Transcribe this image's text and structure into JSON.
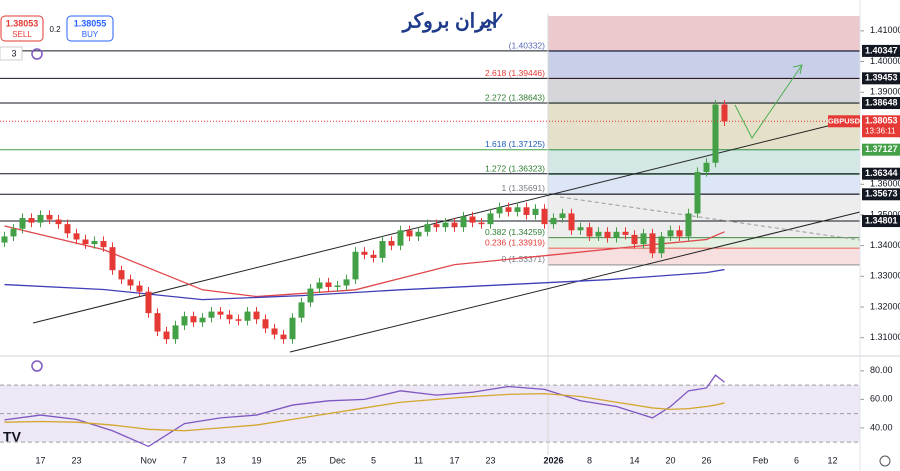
{
  "header": {
    "sell_price": "1.38053",
    "sell_label": "SELL",
    "spread": "0.2",
    "buy_price": "1.38055",
    "buy_label": "BUY",
    "interval": "3",
    "logo": "ایران بروکر"
  },
  "chart_data": [
    {
      "type": "candlestick",
      "symbol": "GBPUSD",
      "up_color": "#43a047",
      "down_color": "#e53935",
      "categories": [
        null,
        null,
        null,
        null,
        "17",
        null,
        null,
        null,
        "23",
        null,
        null,
        null,
        null,
        null,
        null,
        null,
        "Nov",
        null,
        null,
        null,
        "7",
        null,
        null,
        null,
        "13",
        null,
        null,
        null,
        "19",
        null,
        null,
        null,
        null,
        "25",
        null,
        null,
        null,
        "Dec",
        null,
        null,
        null,
        "5",
        null,
        null,
        null,
        null,
        "11",
        null,
        null,
        null,
        "17",
        null,
        null,
        null,
        "23",
        null,
        null,
        null,
        null,
        null,
        null,
        "2026",
        null,
        null,
        null,
        "8",
        null,
        null,
        null,
        null,
        "14",
        null,
        null,
        null,
        "20",
        null,
        null,
        null,
        "26",
        null,
        null,
        null,
        null,
        null,
        "Feb",
        null,
        null,
        null,
        "6",
        null,
        null,
        null,
        "12",
        null
      ],
      "open": [
        1.341,
        1.343,
        1.3455,
        1.349,
        1.3475,
        1.35,
        1.3485,
        1.347,
        1.344,
        1.342,
        1.3405,
        1.3415,
        1.3395,
        1.332,
        1.329,
        1.327,
        1.325,
        1.318,
        1.312,
        1.3095,
        1.314,
        1.317,
        1.315,
        1.3165,
        1.3185,
        1.3175,
        1.316,
        1.3155,
        1.3185,
        1.316,
        1.313,
        1.311,
        1.3095,
        1.3165,
        1.3215,
        1.326,
        1.328,
        1.3265,
        1.327,
        1.329,
        1.338,
        1.337,
        1.336,
        1.3415,
        1.34,
        1.345,
        1.343,
        1.3445,
        1.347,
        1.346,
        1.3475,
        1.346,
        1.3495,
        1.3475,
        1.347,
        1.3505,
        1.3525,
        1.351,
        1.3525,
        1.35,
        1.352,
        1.347,
        1.349,
        1.3505,
        1.345,
        1.346,
        1.343,
        1.3445,
        1.3425,
        1.3445,
        1.3435,
        1.3405,
        1.344,
        1.3375,
        1.343,
        1.345,
        1.343,
        1.3505,
        1.364,
        1.367,
        1.386,
        null,
        null,
        null,
        null,
        null,
        null,
        null,
        null,
        null,
        null,
        null,
        null,
        null
      ],
      "high": [
        1.3445,
        1.347,
        1.3505,
        1.3505,
        1.3515,
        1.3515,
        1.35,
        1.3485,
        1.3455,
        1.3435,
        1.343,
        1.343,
        1.341,
        1.3335,
        1.3305,
        1.3285,
        1.3265,
        1.3195,
        1.3135,
        1.3155,
        1.3185,
        1.3185,
        1.318,
        1.32,
        1.32,
        1.319,
        1.3175,
        1.32,
        1.32,
        1.3175,
        1.3145,
        1.3125,
        1.318,
        1.323,
        1.3275,
        1.3295,
        1.3295,
        1.3285,
        1.3305,
        1.3395,
        1.3395,
        1.3385,
        1.343,
        1.343,
        1.3465,
        1.3465,
        1.346,
        1.3485,
        1.3485,
        1.349,
        1.349,
        1.351,
        1.351,
        1.349,
        1.352,
        1.354,
        1.354,
        1.354,
        1.354,
        1.3535,
        1.3535,
        1.3505,
        1.352,
        1.352,
        1.3475,
        1.3475,
        1.346,
        1.346,
        1.346,
        1.346,
        1.345,
        1.3455,
        1.3455,
        1.3445,
        1.3465,
        1.3465,
        1.352,
        1.3655,
        1.3685,
        1.3875,
        1.3875,
        null,
        null,
        null,
        null,
        null,
        null,
        null,
        null,
        null,
        null,
        null,
        null,
        null
      ],
      "low": [
        1.3395,
        1.3415,
        1.344,
        1.346,
        1.346,
        1.347,
        1.3455,
        1.3425,
        1.3405,
        1.339,
        1.339,
        1.338,
        1.3305,
        1.3275,
        1.3255,
        1.3235,
        1.3165,
        1.3105,
        1.308,
        1.308,
        1.3125,
        1.3135,
        1.3135,
        1.315,
        1.316,
        1.3145,
        1.314,
        1.314,
        1.3145,
        1.3115,
        1.3095,
        1.308,
        1.308,
        1.315,
        1.32,
        1.3245,
        1.325,
        1.325,
        1.3255,
        1.3275,
        1.3355,
        1.3345,
        1.3345,
        1.3385,
        1.3385,
        1.3415,
        1.3415,
        1.343,
        1.3445,
        1.3445,
        1.3445,
        1.3445,
        1.346,
        1.3455,
        1.3455,
        1.349,
        1.3495,
        1.3495,
        1.3485,
        1.3485,
        1.3455,
        1.3455,
        1.3475,
        1.3435,
        1.3435,
        1.3415,
        1.3415,
        1.341,
        1.341,
        1.342,
        1.339,
        1.339,
        1.336,
        1.336,
        1.3415,
        1.3415,
        1.3415,
        1.349,
        1.3625,
        1.3655,
        1.379,
        null,
        null,
        null,
        null,
        null,
        null,
        null,
        null,
        null,
        null,
        null,
        null,
        null
      ],
      "close": [
        1.343,
        1.3455,
        1.349,
        1.3475,
        1.35,
        1.3485,
        1.347,
        1.344,
        1.342,
        1.3405,
        1.3415,
        1.3395,
        1.332,
        1.329,
        1.327,
        1.325,
        1.318,
        1.312,
        1.3095,
        1.314,
        1.317,
        1.315,
        1.3165,
        1.3185,
        1.3175,
        1.316,
        1.3155,
        1.3185,
        1.316,
        1.313,
        1.311,
        1.3095,
        1.3165,
        1.3215,
        1.326,
        1.328,
        1.3265,
        1.327,
        1.329,
        1.338,
        1.337,
        1.336,
        1.3415,
        1.34,
        1.345,
        1.343,
        1.3445,
        1.347,
        1.346,
        1.3475,
        1.346,
        1.3495,
        1.3475,
        1.347,
        1.3505,
        1.3525,
        1.351,
        1.3525,
        1.35,
        1.352,
        1.347,
        1.349,
        1.3505,
        1.345,
        1.346,
        1.343,
        1.3445,
        1.3425,
        1.3445,
        1.3435,
        1.3405,
        1.344,
        1.3375,
        1.343,
        1.345,
        1.343,
        1.3505,
        1.364,
        1.367,
        1.386,
        1.3805,
        null,
        null,
        null,
        null,
        null,
        null,
        null,
        null,
        null,
        null,
        null,
        null,
        null
      ],
      "ylim": [
        1.305,
        1.4155
      ],
      "yticks": [
        {
          "value": 1.41,
          "label": "1.41000"
        },
        {
          "value": 1.4,
          "label": "1.40000"
        },
        {
          "value": 1.39,
          "label": "1.39000"
        },
        {
          "value": 1.36,
          "label": "1.36000"
        },
        {
          "value": 1.35,
          "label": "1.35000"
        },
        {
          "value": 1.34,
          "label": "1.34000"
        },
        {
          "value": 1.33,
          "label": "1.33000"
        },
        {
          "value": 1.32,
          "label": "1.32000"
        },
        {
          "value": 1.31,
          "label": "1.31000"
        }
      ],
      "moving_averages": [
        {
          "color": "#e0474c",
          "x": [
            0,
            11,
            22,
            28,
            39,
            50,
            61,
            72,
            78,
            80
          ],
          "values": [
            1.3464,
            1.3387,
            1.3256,
            1.3234,
            1.3256,
            1.3338,
            1.337,
            1.3403,
            1.342,
            1.3445
          ]
        },
        {
          "color": "#3f3fb8",
          "x": [
            0,
            11,
            22,
            33,
            44,
            56,
            67,
            78,
            80
          ],
          "values": [
            1.3273,
            1.3257,
            1.3224,
            1.3237,
            1.3256,
            1.3273,
            1.3289,
            1.3312,
            1.3322
          ]
        }
      ],
      "fib_top_color": "#ecc9cd",
      "fib_levels": [
        {
          "value": 1.40332,
          "label": "(1.40332)",
          "color": "#5b6bb5",
          "fill": "#c9cfe8"
        },
        {
          "value": 1.39446,
          "label": "2.618 (1.39446)",
          "color": "#e53935",
          "fill": "#d6d6da"
        },
        {
          "value": 1.38643,
          "label": "2.272 (1.38643)",
          "color": "#2e7d32",
          "fill": "#e4e0c9"
        },
        {
          "value": 1.37125,
          "label": "1.618 (1.37125)",
          "color": "#1e5bb8",
          "fill": "#d3e7e5"
        },
        {
          "value": 1.36323,
          "label": "1.272 (1.36323)",
          "color": "#2e7d32",
          "fill": "#dce6f6"
        },
        {
          "value": 1.35691,
          "label": "1 (1.35691)",
          "color": "#787b86",
          "fill": "#ededed"
        },
        {
          "value": 1.34259,
          "label": "0.382 (1.34259)",
          "color": "#2e7d32",
          "fill": "#e3f0e2"
        },
        {
          "value": 1.33919,
          "label": "0.236 (1.33919)",
          "color": "#e53935",
          "fill": "#f7dfdf"
        },
        {
          "value": 1.33371,
          "label": "0 (1.33371)",
          "color": "#787b86"
        }
      ],
      "price_lines": [
        {
          "value": 1.40347,
          "color": "#131722"
        },
        {
          "value": 1.39453,
          "color": "#131722"
        },
        {
          "value": 1.38648,
          "color": "#131722"
        },
        {
          "value": 1.37127,
          "color": "#43a047"
        },
        {
          "value": 1.36344,
          "color": "#131722"
        },
        {
          "value": 1.35673,
          "color": "#131722"
        },
        {
          "value": 1.34801,
          "color": "#131722"
        }
      ],
      "last_price": {
        "value": 1.38053,
        "countdown": "13:36:11",
        "color": "#e53935"
      }
    },
    {
      "type": "line",
      "x": [
        0,
        4,
        8,
        12,
        16,
        20,
        24,
        28,
        32,
        36,
        40,
        44,
        48,
        52,
        56,
        60,
        64,
        68,
        72,
        74,
        76,
        78,
        79,
        80
      ],
      "series": [
        {
          "color": "#7e57c2",
          "values": [
            45.6,
            49,
            46,
            38,
            27,
            43,
            47,
            49,
            56,
            59,
            60,
            66,
            63,
            65,
            69,
            67,
            59,
            55,
            47,
            55,
            66,
            68,
            77,
            72
          ]
        },
        {
          "color": "#d4a72c",
          "values": [
            44,
            44.5,
            44,
            42,
            39,
            38,
            40,
            42,
            46,
            50,
            54,
            58,
            60,
            62,
            63.5,
            64,
            62,
            58,
            54,
            53,
            53.5,
            55,
            56,
            57.5
          ]
        }
      ],
      "ylim": [
        21,
        89
      ],
      "yticks": [
        {
          "value": 80,
          "label": "80.00"
        },
        {
          "value": 60,
          "label": "60.00"
        },
        {
          "value": 40,
          "label": "40.00"
        }
      ],
      "band": [
        30,
        70
      ],
      "midline": 50,
      "band_color": "#ede7f6"
    }
  ]
}
